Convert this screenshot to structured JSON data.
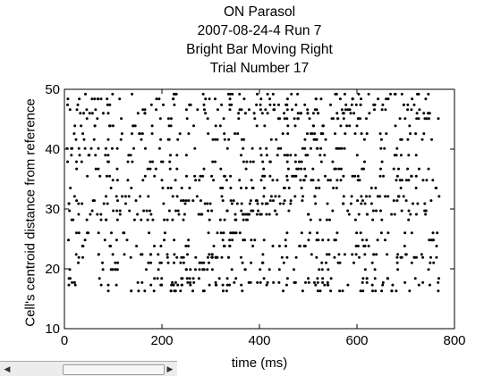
{
  "chart_data": {
    "type": "scatter",
    "title": [
      "ON Parasol",
      "2007-08-24-4 Run 7",
      "Bright Bar Moving Right",
      "Trial Number 17"
    ],
    "xlabel": "time (ms)",
    "ylabel": "Cell's centroid distance from reference",
    "xlim": [
      0,
      800
    ],
    "ylim": [
      10,
      50
    ],
    "xticks": [
      0,
      200,
      400,
      600,
      800
    ],
    "yticks": [
      10,
      20,
      30,
      40,
      50
    ],
    "grid": false,
    "marker_color": "#000000",
    "cell_rows": [
      16.3,
      17.3,
      17.7,
      18.4,
      19.9,
      21.0,
      21.9,
      22.4,
      23.8,
      24.8,
      26.0,
      28.2,
      29.1,
      29.7,
      30.9,
      31.4,
      32.1,
      33.5,
      34.8,
      35.5,
      36.7,
      37.9,
      39.0,
      40.1,
      41.6,
      42.6,
      43.9,
      45.1,
      46.0,
      46.6,
      47.4,
      48.4,
      49.2
    ],
    "background_rate_per_row": 26,
    "xrange_active": [
      5,
      770
    ],
    "sweep": {
      "x_start": 230,
      "x_end": 610,
      "y_start": 16,
      "y_end": 49,
      "density": 3,
      "jitter_ms": 22
    },
    "series": [
      {
        "values": []
      }
    ]
  }
}
